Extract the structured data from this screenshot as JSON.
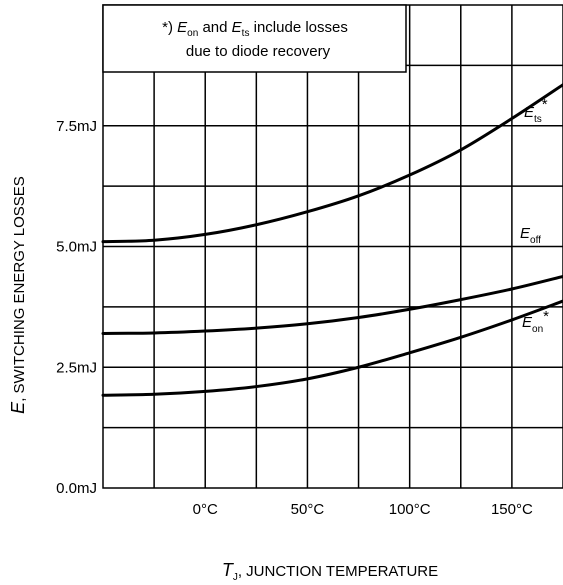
{
  "chart_data": {
    "type": "line",
    "xlabel": {
      "symbol": "T",
      "subscript": "J",
      "text": ", JUNCTION TEMPERATURE"
    },
    "ylabel": {
      "symbol": "E",
      "text": ", SWITCHING ENERGY LOSSES"
    },
    "xlim": [
      -50,
      175
    ],
    "ylim": [
      0,
      10
    ],
    "x_ticks": [
      {
        "value": 0,
        "label": "0°C"
      },
      {
        "value": 50,
        "label": "50°C"
      },
      {
        "value": 100,
        "label": "100°C"
      },
      {
        "value": 150,
        "label": "150°C"
      }
    ],
    "x_grid": [
      -25,
      0,
      25,
      50,
      75,
      100,
      125,
      150
    ],
    "y_ticks": [
      {
        "value": 0,
        "label": "0.0mJ"
      },
      {
        "value": 2.5,
        "label": "2.5mJ"
      },
      {
        "value": 5.0,
        "label": "5.0mJ"
      },
      {
        "value": 7.5,
        "label": "7.5mJ"
      }
    ],
    "y_grid": [
      1.25,
      2.5,
      3.75,
      5.0,
      6.25,
      7.5,
      8.75
    ],
    "grid": true,
    "series": [
      {
        "name": {
          "symbol": "E",
          "subscript": "ts",
          "suffix": "*"
        },
        "x": [
          -50,
          -25,
          0,
          25,
          50,
          75,
          100,
          125,
          150,
          175
        ],
        "y": [
          5.1,
          5.13,
          5.25,
          5.45,
          5.72,
          6.05,
          6.48,
          7.0,
          7.65,
          8.35
        ]
      },
      {
        "name": {
          "symbol": "E",
          "subscript": "off",
          "suffix": ""
        },
        "x": [
          -50,
          -25,
          0,
          25,
          50,
          75,
          100,
          125,
          150,
          175
        ],
        "y": [
          3.2,
          3.21,
          3.25,
          3.31,
          3.4,
          3.53,
          3.7,
          3.9,
          4.12,
          4.38
        ]
      },
      {
        "name": {
          "symbol": "E",
          "subscript": "on",
          "suffix": "*"
        },
        "x": [
          -50,
          -25,
          0,
          25,
          50,
          75,
          100,
          125,
          150,
          175
        ],
        "y": [
          1.92,
          1.94,
          2.0,
          2.1,
          2.26,
          2.5,
          2.8,
          3.12,
          3.48,
          3.87
        ]
      }
    ],
    "annotation": {
      "line1_prefix": "*) ",
      "e1_symbol": "E",
      "e1_subscript": "on",
      "line1_mid": " and ",
      "e2_symbol": "E",
      "e2_subscript": "ts",
      "line1_suffix": " include losses",
      "line2": "due to diode recovery"
    }
  }
}
